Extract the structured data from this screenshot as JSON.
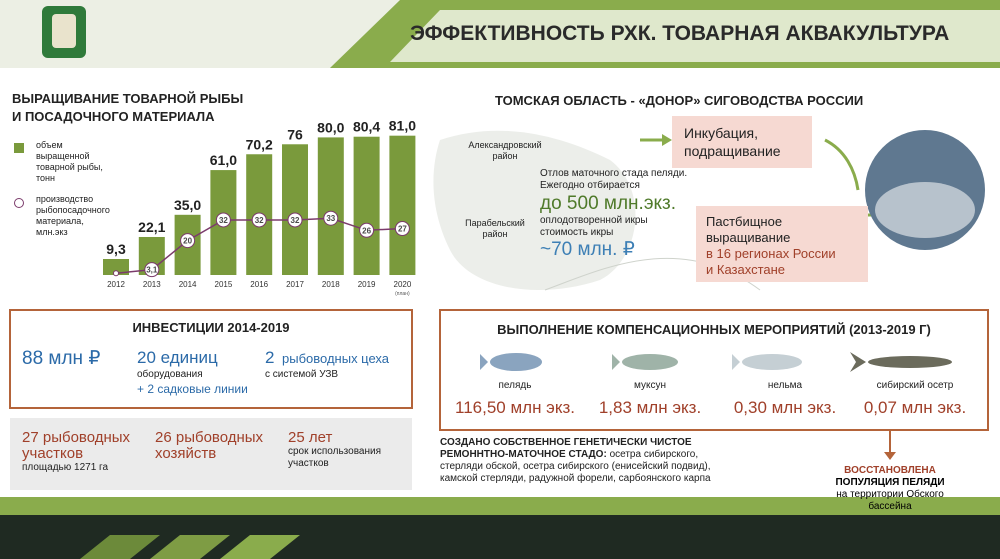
{
  "header": {
    "title": "ЭФФЕКТИВНОСТЬ РХК. ТОВАРНАЯ АКВАКУЛЬТУРА"
  },
  "chart_data": {
    "type": "bar_line",
    "title": [
      "ВЫРАЩИВАНИЕ ТОВАРНОЙ РЫБЫ",
      "И ПОСАДОЧНОГО МАТЕРИАЛА"
    ],
    "categories": [
      "2012",
      "2013",
      "2014",
      "2015",
      "2016",
      "2017",
      "2018",
      "2019",
      "2020"
    ],
    "category_note": "(план)",
    "series": [
      {
        "name": [
          "объем выращенной",
          "товарной рыбы, тонн"
        ],
        "kind": "bar",
        "color": "#7a9a3c",
        "values": [
          9.3,
          22.1,
          35.0,
          61.0,
          70.2,
          76,
          80.0,
          80.4,
          81.0
        ],
        "value_labels": [
          "9,3",
          "22,1",
          "35,0",
          "61,0",
          "70,2",
          "76",
          "80,0",
          "80,4",
          "81,0"
        ]
      },
      {
        "name": [
          "производство",
          "рыбопосадочного",
          "материала, млн.экз"
        ],
        "kind": "line",
        "color": "#7b3b6b",
        "values": [
          1,
          3.1,
          20,
          32,
          32,
          32,
          33,
          26,
          27
        ],
        "value_labels": [
          null,
          "3,1",
          "20",
          "32",
          "32",
          "32",
          "33",
          "26",
          "27"
        ]
      }
    ]
  },
  "donor": {
    "title": "ТОМСКАЯ ОБЛАСТЬ - «ДОНОР» СИГОВОДСТВА РОССИИ",
    "districts": [
      [
        "Александровский",
        "район"
      ],
      [
        "Парабельский",
        "район"
      ]
    ],
    "text1": [
      "Отлов маточного стада пеляди.",
      "Ежегодно отбирается"
    ],
    "amount1": "до 500 млн.экз.",
    "text2": [
      "оплодотворенной икры",
      "стоимость икры"
    ],
    "amount2": "~70 млн. ₽",
    "box1": [
      "Инкубация,",
      "подращивание"
    ],
    "box2": [
      "Пастбищное",
      "выращивание"
    ],
    "box2_note": [
      "в 16 регионах России",
      "и Казахстане"
    ]
  },
  "investments": {
    "title": "ИНВЕСТИЦИИ 2014-2019",
    "money": "88 млн ₽",
    "equipment": {
      "count": "20 единиц",
      "text": "оборудования",
      "extra": "+ 2 садковые линии"
    },
    "workshops": {
      "count": "2",
      "unit": "рыбоводных цеха",
      "text": "с системой УЗВ"
    }
  },
  "facts": [
    {
      "head": [
        "27 рыбоводных",
        "участков"
      ],
      "text": [
        "площадью 1271 га"
      ]
    },
    {
      "head": [
        "26 рыбоводных",
        "хозяйств"
      ],
      "text": []
    },
    {
      "head": [
        "25 лет"
      ],
      "text": [
        "срок использования",
        "участков"
      ]
    }
  ],
  "compensation": {
    "title": "ВЫПОЛНЕНИЕ КОМПЕНСАЦИОННЫХ МЕРОПРИЯТИЙ (2013-2019 Г)",
    "fish": [
      {
        "name": "пелядь",
        "amount": "116,50 млн экз."
      },
      {
        "name": "муксун",
        "amount": "1,83 млн экз."
      },
      {
        "name": "нельма",
        "amount": "0,30 млн экз."
      },
      {
        "name": "сибирский осетр",
        "amount": "0,07 млн экз."
      }
    ]
  },
  "herd": {
    "head": [
      "СОЗДАНО СОБСТВЕННОЕ ГЕНЕТИЧЕСКИ ЧИСТОЕ",
      "РЕМОННТНО-МАТОЧНОЕ СТАДО:"
    ],
    "text": [
      "осетра сибирского,",
      "стерляди обской, осетра сибирского (енисейский подвид),",
      "камской стерляди, радужной форели, сарбоянского карпа"
    ]
  },
  "restored": {
    "head": "ВОССТАНОВЛЕНА",
    "sub": "ПОПУЛЯЦИЯ ПЕЛЯДИ",
    "text": [
      "на территории Обского",
      "бассейна"
    ]
  }
}
